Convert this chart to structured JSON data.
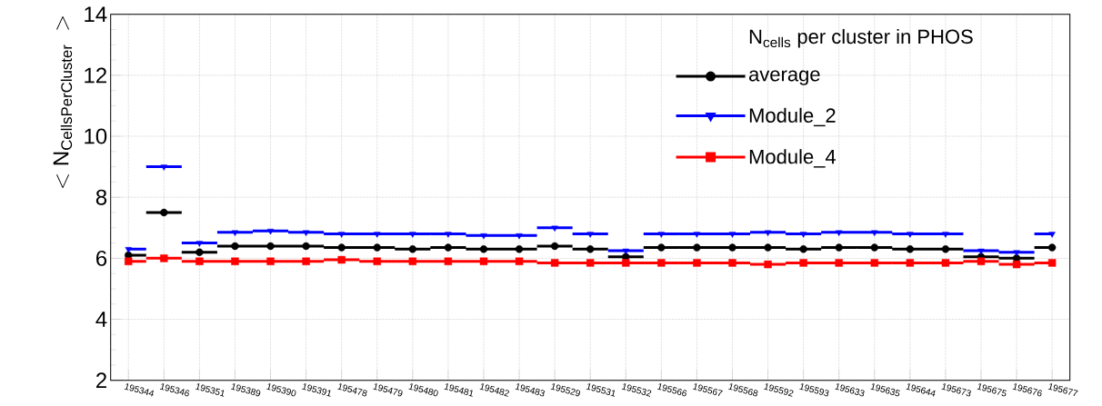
{
  "chart_data": {
    "type": "step",
    "ylabel": "<\\mathrm{N}_{\\mathrm{CellsPerCluster}}\\;>",
    "legend_title": "N$_{cells}$ per cluster in PHOS",
    "categories": [
      "195344",
      "195346",
      "195351",
      "195389",
      "195390",
      "195391",
      "195478",
      "195479",
      "195480",
      "195481",
      "195482",
      "195483",
      "195529",
      "195531",
      "195532",
      "195566",
      "195567",
      "195568",
      "195592",
      "195593",
      "195633",
      "195635",
      "195644",
      "195673",
      "195675",
      "195676",
      "195677"
    ],
    "series": [
      {
        "name": "average",
        "color": "#000000",
        "marker": "circle",
        "values": [
          6.1,
          7.5,
          6.2,
          6.4,
          6.4,
          6.4,
          6.35,
          6.35,
          6.3,
          6.35,
          6.3,
          6.3,
          6.4,
          6.3,
          6.05,
          6.35,
          6.35,
          6.35,
          6.35,
          6.3,
          6.35,
          6.35,
          6.3,
          6.3,
          6.05,
          6.0,
          6.35
        ]
      },
      {
        "name": "Module_2",
        "color": "#0000ff",
        "marker": "triangle",
        "values": [
          6.3,
          9.0,
          6.5,
          6.85,
          6.9,
          6.85,
          6.8,
          6.8,
          6.8,
          6.8,
          6.75,
          6.75,
          7.0,
          6.8,
          6.25,
          6.8,
          6.8,
          6.8,
          6.85,
          6.8,
          6.85,
          6.85,
          6.8,
          6.8,
          6.25,
          6.2,
          6.8
        ]
      },
      {
        "name": "Module_4",
        "color": "#ff0000",
        "marker": "square",
        "values": [
          5.9,
          6.0,
          5.9,
          5.9,
          5.9,
          5.9,
          5.95,
          5.9,
          5.9,
          5.9,
          5.9,
          5.9,
          5.85,
          5.85,
          5.85,
          5.85,
          5.85,
          5.85,
          5.8,
          5.85,
          5.85,
          5.85,
          5.85,
          5.85,
          5.9,
          5.8,
          5.85
        ]
      }
    ],
    "ylim": [
      2,
      14
    ],
    "yticks": [
      2,
      4,
      6,
      8,
      10,
      12,
      14
    ],
    "grid": true,
    "legend": "top right"
  }
}
